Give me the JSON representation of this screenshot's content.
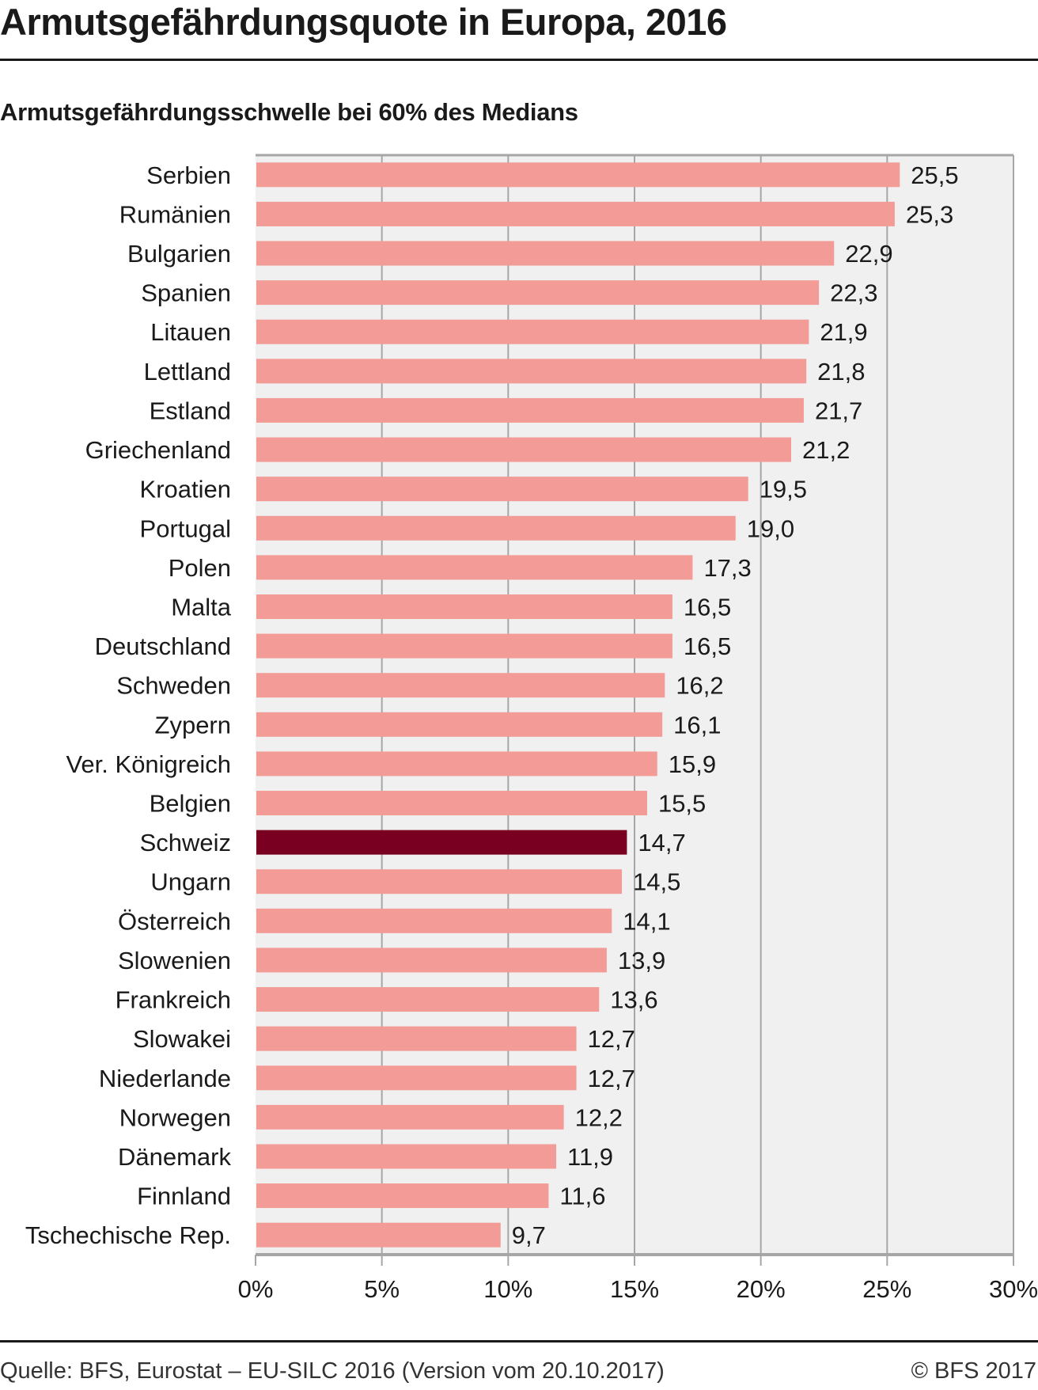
{
  "chart_data": {
    "type": "bar",
    "orientation": "horizontal",
    "title": "Armutsgefährdungsquote in Europa, 2016",
    "subtitle": "Armutsgefährdungsschwelle bei 60% des Medians",
    "categories": [
      "Serbien",
      "Rumänien",
      "Bulgarien",
      "Spanien",
      "Litauen",
      "Lettland",
      "Estland",
      "Griechenland",
      "Kroatien",
      "Portugal",
      "Polen",
      "Malta",
      "Deutschland",
      "Schweden",
      "Zypern",
      "Ver. Königreich",
      "Belgien",
      "Schweiz",
      "Ungarn",
      "Österreich",
      "Slowenien",
      "Frankreich",
      "Slowakei",
      "Niederlande",
      "Norwegen",
      "Dänemark",
      "Finnland",
      "Tschechische Rep."
    ],
    "values": [
      25.5,
      25.3,
      22.9,
      22.3,
      21.9,
      21.8,
      21.7,
      21.2,
      19.5,
      19.0,
      17.3,
      16.5,
      16.5,
      16.2,
      16.1,
      15.9,
      15.5,
      14.7,
      14.5,
      14.1,
      13.9,
      13.6,
      12.7,
      12.7,
      12.2,
      11.9,
      11.6,
      9.7
    ],
    "value_labels": [
      "25,5",
      "25,3",
      "22,9",
      "22,3",
      "21,9",
      "21,8",
      "21,7",
      "21,2",
      "19,5",
      "19,0",
      "17,3",
      "16,5",
      "16,5",
      "16,2",
      "16,1",
      "15,9",
      "15,5",
      "14,7",
      "14,5",
      "14,1",
      "13,9",
      "13,6",
      "12,7",
      "12,7",
      "12,2",
      "11,9",
      "11,6",
      "9,7"
    ],
    "highlight": "Schweiz",
    "xlim": [
      0,
      30
    ],
    "xticks": [
      0,
      5,
      10,
      15,
      20,
      25,
      30
    ],
    "xtick_labels": [
      "0%",
      "5%",
      "10%",
      "15%",
      "20%",
      "25%",
      "30%"
    ],
    "xlabel": "",
    "ylabel": "",
    "grid": true,
    "colors": {
      "bar": "#f39b96",
      "highlight": "#7a0021",
      "background": "#f0f0f0",
      "grid": "#a6a6a6"
    }
  },
  "footer": {
    "source": "Quelle: BFS, Eurostat – EU-SILC 2016 (Version vom 20.10.2017)",
    "copyright": "© BFS 2017"
  }
}
